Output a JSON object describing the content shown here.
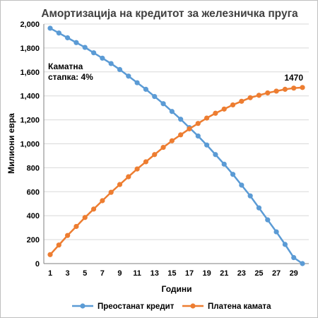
{
  "chart_data": {
    "type": "line",
    "title": "Амортизација  на кредитот за железничка пруга",
    "xlabel": "Години",
    "ylabel": "Милиони евра",
    "xlim": [
      1,
      30
    ],
    "ylim": [
      0,
      2000
    ],
    "x_ticks": [
      1,
      3,
      5,
      7,
      9,
      11,
      13,
      15,
      17,
      19,
      21,
      23,
      25,
      27,
      29
    ],
    "y_ticks": [
      0,
      200,
      400,
      600,
      800,
      1000,
      1200,
      1400,
      1600,
      1800,
      2000
    ],
    "y_tick_labels": [
      "0",
      "200",
      "400",
      "600",
      "800",
      "1,000",
      "1,200",
      "1,400",
      "1,600",
      "1,800",
      "2,000"
    ],
    "grid": "horizontal",
    "legend": "bottom",
    "x": [
      1,
      2,
      3,
      4,
      5,
      6,
      7,
      8,
      9,
      10,
      11,
      12,
      13,
      14,
      15,
      16,
      17,
      18,
      19,
      20,
      21,
      22,
      23,
      24,
      25,
      26,
      27,
      28,
      29,
      30
    ],
    "series": [
      {
        "name": "Преостанат кредит",
        "color": "#5b9bd5",
        "values": [
          1965,
          1925,
          1885,
          1845,
          1805,
          1760,
          1715,
          1670,
          1620,
          1565,
          1510,
          1455,
          1395,
          1335,
          1270,
          1205,
          1135,
          1065,
          990,
          910,
          830,
          745,
          655,
          565,
          465,
          365,
          265,
          160,
          50,
          0
        ]
      },
      {
        "name": "Платена камата",
        "color": "#ed7d31",
        "values": [
          75,
          155,
          235,
          310,
          385,
          455,
          525,
          595,
          660,
          725,
          790,
          850,
          910,
          970,
          1025,
          1075,
          1125,
          1170,
          1215,
          1255,
          1290,
          1325,
          1355,
          1385,
          1405,
          1425,
          1440,
          1455,
          1465,
          1470
        ]
      }
    ],
    "annotations": [
      {
        "text_line1": "Каматна",
        "text_line2": "стапка: 4%"
      },
      {
        "text": "1470",
        "x": 29,
        "y": 1470
      }
    ]
  }
}
